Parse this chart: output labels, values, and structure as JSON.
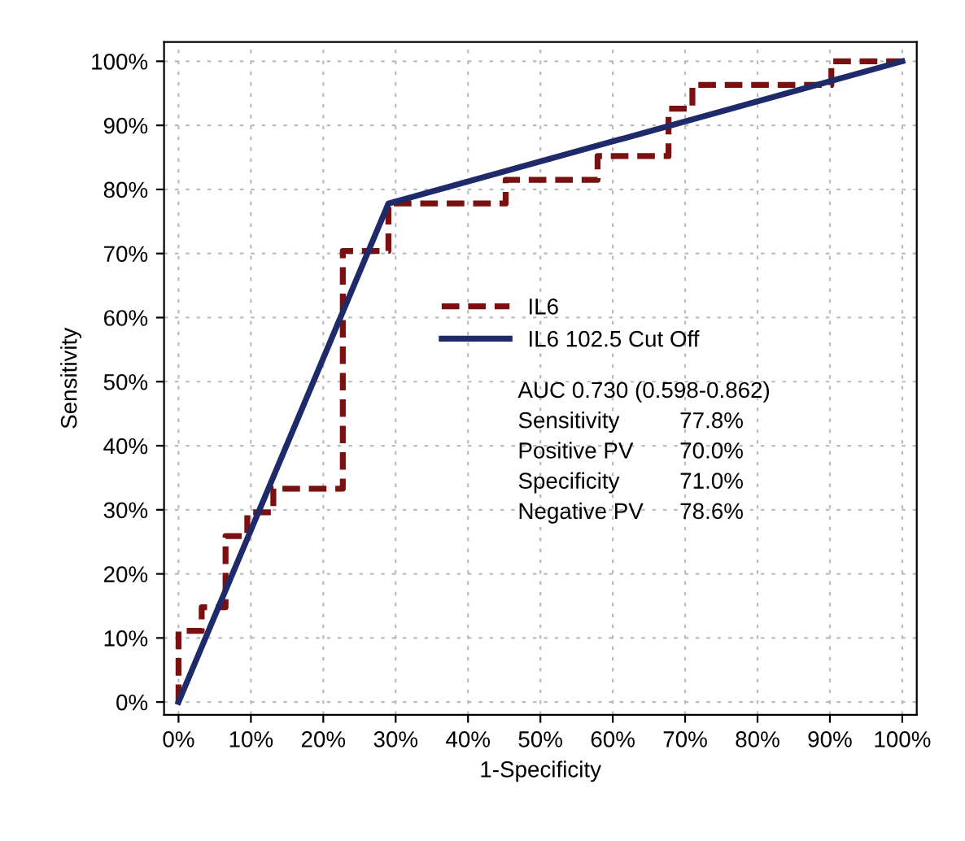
{
  "chart_data": {
    "type": "line",
    "xlabel": "1-Specificity",
    "ylabel": "Sensitivity",
    "xlim": [
      -2,
      102
    ],
    "ylim": [
      -2,
      103
    ],
    "xticks": [
      {
        "value": 0,
        "label": "0%"
      },
      {
        "value": 10,
        "label": "10%"
      },
      {
        "value": 20,
        "label": "20%"
      },
      {
        "value": 30,
        "label": "30%"
      },
      {
        "value": 40,
        "label": "40%"
      },
      {
        "value": 50,
        "label": "50%"
      },
      {
        "value": 60,
        "label": "60%"
      },
      {
        "value": 70,
        "label": "70%"
      },
      {
        "value": 80,
        "label": "80%"
      },
      {
        "value": 90,
        "label": "90%"
      },
      {
        "value": 100,
        "label": "100%"
      }
    ],
    "yticks": [
      {
        "value": 0,
        "label": "0%"
      },
      {
        "value": 10,
        "label": "10%"
      },
      {
        "value": 20,
        "label": "20%"
      },
      {
        "value": 30,
        "label": "30%"
      },
      {
        "value": 40,
        "label": "40%"
      },
      {
        "value": 50,
        "label": "50%"
      },
      {
        "value": 60,
        "label": "60%"
      },
      {
        "value": 70,
        "label": "70%"
      },
      {
        "value": 80,
        "label": "80%"
      },
      {
        "value": 90,
        "label": "90%"
      },
      {
        "value": 100,
        "label": "100%"
      }
    ],
    "grid": true,
    "legend": "center",
    "series": [
      {
        "name": "IL6",
        "type": "step",
        "color": "#7a1010",
        "line_style": "dashed",
        "x": [
          0,
          0,
          3.2,
          6.5,
          9.5,
          13.1,
          22.7,
          29,
          45.2,
          57.9,
          67.7,
          71,
          90.2,
          100
        ],
        "values": [
          0,
          11.1,
          14.8,
          25.9,
          29.6,
          33.3,
          70.4,
          77.8,
          81.5,
          85.2,
          92.6,
          96.3,
          100,
          100
        ]
      },
      {
        "name": "IL6 102.5 Cut Off",
        "color": "#1f2a6b",
        "line_style": "solid",
        "x": [
          0,
          29,
          100
        ],
        "values": [
          0,
          77.8,
          100
        ]
      }
    ],
    "annotations": [
      "AUC 0.730 (0.598-0.862)",
      "Sensitivity",
      "77.8%",
      "Positive PV",
      "70.0%",
      "Specificity",
      "71.0%",
      "Negative PV",
      "78.6%"
    ]
  }
}
